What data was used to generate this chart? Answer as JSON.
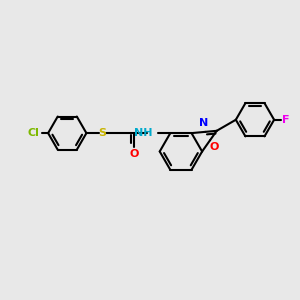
{
  "background_color": "#e8e8e8",
  "bond_color": "#000000",
  "atom_colors": {
    "Cl": "#7db800",
    "S": "#c8b400",
    "O_carbonyl": "#ff0000",
    "NH": "#00aacc",
    "N": "#0000ff",
    "O_ring": "#ff0000",
    "F": "#ee00ee"
  },
  "line_width": 1.5,
  "figsize": [
    3.0,
    3.0
  ],
  "dpi": 100
}
